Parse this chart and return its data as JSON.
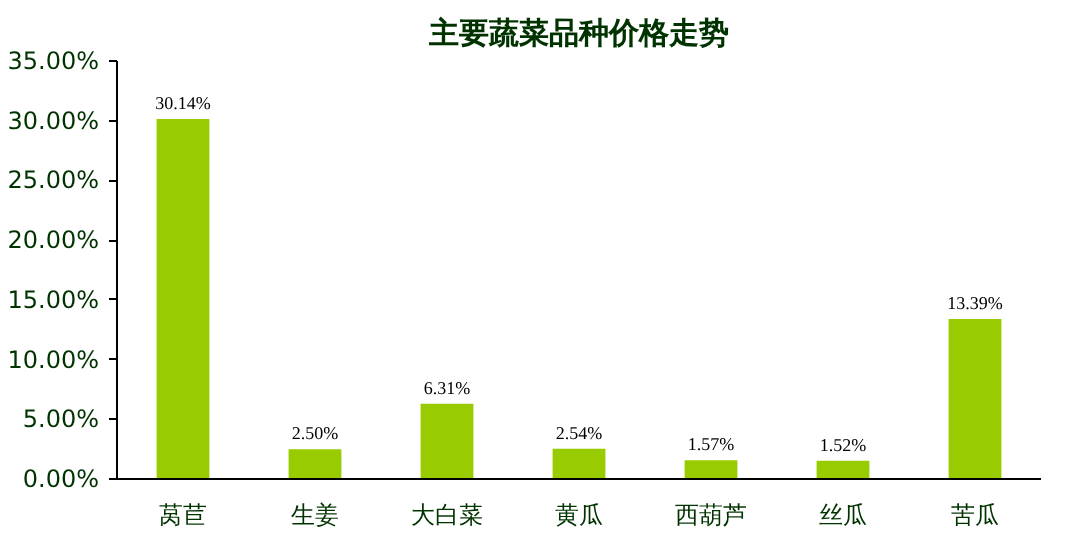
{
  "chart_data": {
    "type": "bar",
    "title": "主要蔬菜品种价格走势",
    "categories": [
      "莴苣",
      "生姜",
      "大白菜",
      "黄瓜",
      "西葫芦",
      "丝瓜",
      "苦瓜"
    ],
    "values": [
      30.14,
      2.5,
      6.31,
      2.54,
      1.57,
      1.52,
      13.39
    ],
    "color": "#99cc00",
    "value_labels": [
      "30.14%",
      "2.50%",
      "6.31%",
      "2.54%",
      "1.57%",
      "1.52%",
      "13.39%"
    ],
    "ylim": [
      0,
      35
    ],
    "yticks": [
      {
        "value": 0,
        "label": "0.00%"
      },
      {
        "value": 5,
        "label": "5.00%"
      },
      {
        "value": 10,
        "label": "10.00%"
      },
      {
        "value": 15,
        "label": "15.00%"
      },
      {
        "value": 20,
        "label": "20.00%"
      },
      {
        "value": 25,
        "label": "25.00%"
      },
      {
        "value": 30,
        "label": "30.00%"
      },
      {
        "value": 35,
        "label": "35.00%"
      }
    ],
    "grid": false
  }
}
